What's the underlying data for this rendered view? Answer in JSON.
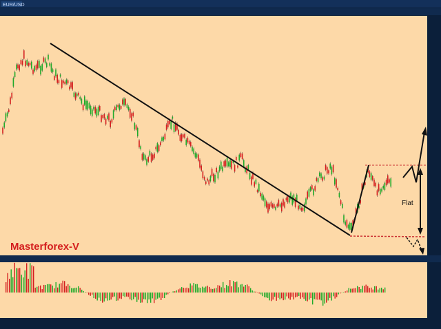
{
  "window": {
    "tab": "EUR/USD"
  },
  "annotations": {
    "brand": "Masterforex-V",
    "range_label": "Flat"
  }
}
